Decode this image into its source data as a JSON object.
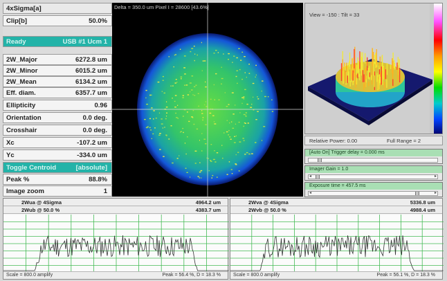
{
  "left_panel": {
    "header": "4xSigma[a]",
    "clip": {
      "label": "Clip[b]",
      "value": "50.0%"
    },
    "status": {
      "label": "Ready",
      "value": "USB #1 Ucm 1"
    },
    "params": [
      {
        "label": "2W_Major",
        "value": "6272.8 um"
      },
      {
        "label": "2W_Minor",
        "value": "6015.2 um"
      },
      {
        "label": "2W_Mean",
        "value": "6134.2 um"
      },
      {
        "label": "Eff. diam.",
        "value": "6357.7 um"
      },
      {
        "label": "Ellipticity",
        "value": "0.96"
      },
      {
        "label": "Orientation",
        "value": "0.0 deg."
      },
      {
        "label": "Crosshair",
        "value": "0.0 deg."
      },
      {
        "label": "Xc",
        "value": "-107.2 um"
      },
      {
        "label": "Yc",
        "value": "-334.0 um"
      }
    ],
    "trigger": {
      "label": "Toggle Centroid",
      "value": "[absolute]"
    },
    "peak": {
      "label": "Peak %",
      "value": "88.8%"
    },
    "zoom": {
      "label": "Image zoom",
      "value": "1"
    }
  },
  "beam_view": {
    "readout": "Delta = 350.0 um Pixel I = 28600 [43.6%]"
  },
  "view3d": {
    "readout": "View = -150 : Tilt = 33",
    "relative_power": "Relative Power: 0.00",
    "full_range": "Full Range = 2"
  },
  "controls": [
    {
      "label": "[Auto On] Trigger delay = 0.000 ms",
      "thumb_frac": 0.02
    },
    {
      "label": "Imager Gain = 1.0",
      "thumb_frac": 0.0
    },
    {
      "label": "Exposure time = 457.5 ms",
      "thumb_frac": 0.86
    }
  ],
  "profiles": [
    {
      "row1_label": "2Wua @ 4Sigma",
      "row1_value": "4964.2 um",
      "row2_label": "2Wub @ 50.0 %",
      "row2_value": "4383.7 um",
      "scale": "Scale = 800.0 amplify",
      "peak": "Peak = 56.4 %, D = 18.3 %"
    },
    {
      "row1_label": "2Wva @ 4Sigma",
      "row1_value": "5336.8 um",
      "row2_label": "2Wvb @ 50.0 %",
      "row2_value": "4988.4 um",
      "scale": "Scale = 800.0 amplify",
      "peak": "Peak = 56.1 %, D = 18.3 %"
    }
  ],
  "colors": {
    "teal": "#23b3a8",
    "plot_grid": "#44bb55",
    "plot_trace": "#333333",
    "slider_title": "#a9dfb4"
  }
}
